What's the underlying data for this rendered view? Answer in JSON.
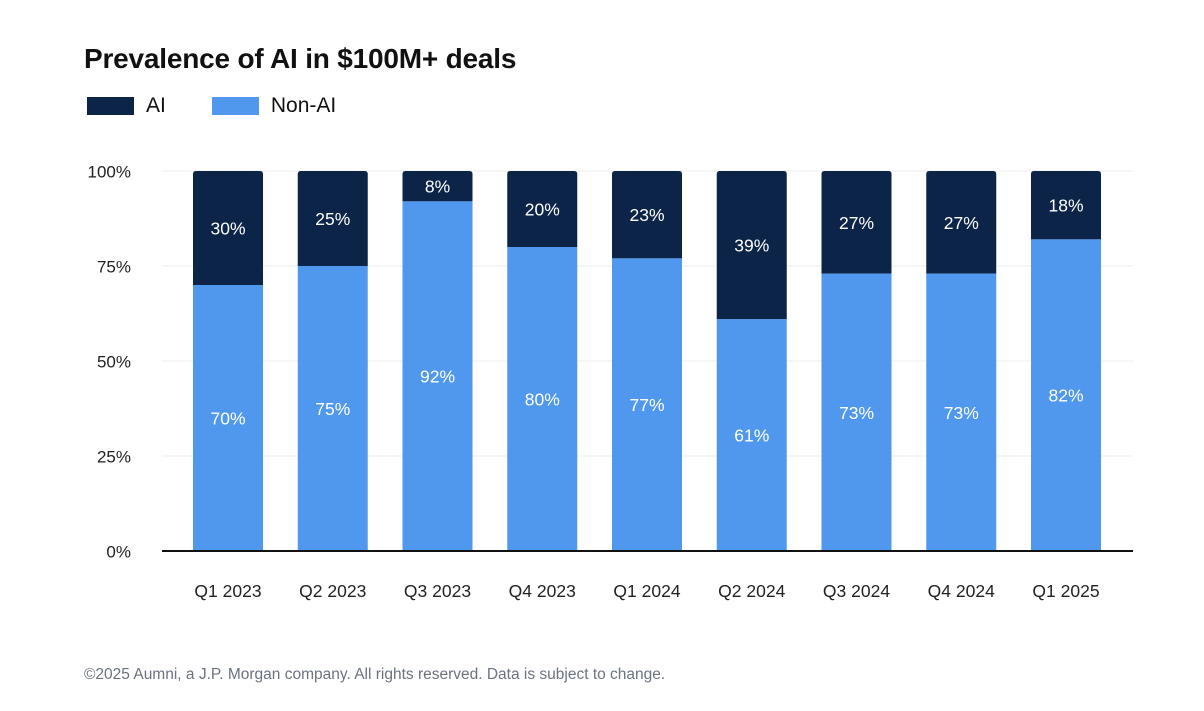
{
  "chart_data": {
    "type": "bar",
    "stacked": true,
    "title": "Prevalence of AI in $100M+ deals",
    "categories": [
      "Q1 2023",
      "Q2 2023",
      "Q3 2023",
      "Q4 2023",
      "Q1 2024",
      "Q2 2024",
      "Q3 2024",
      "Q4 2024",
      "Q1 2025"
    ],
    "series": [
      {
        "name": "Non-AI",
        "color": "#5097ee",
        "values": [
          70,
          75,
          92,
          80,
          77,
          61,
          73,
          73,
          82
        ],
        "labels": [
          "70%",
          "75%",
          "92%",
          "80%",
          "77%",
          "61%",
          "73%",
          "73%",
          "82%"
        ]
      },
      {
        "name": "AI",
        "color": "#0c2447",
        "values": [
          30,
          25,
          8,
          20,
          23,
          39,
          27,
          27,
          18
        ],
        "labels": [
          "30%",
          "25%",
          "8%",
          "20%",
          "23%",
          "39%",
          "27%",
          "27%",
          "18%"
        ]
      }
    ],
    "yticks": [
      0,
      25,
      50,
      75,
      100
    ],
    "ytick_labels": [
      "0%",
      "25%",
      "50%",
      "75%",
      "100%"
    ],
    "ylim": [
      0,
      100
    ],
    "grid": true,
    "legend_position": "top-left"
  },
  "footer": "©2025 Aumni, a J.P. Morgan company. All rights reserved. Data is subject to change."
}
